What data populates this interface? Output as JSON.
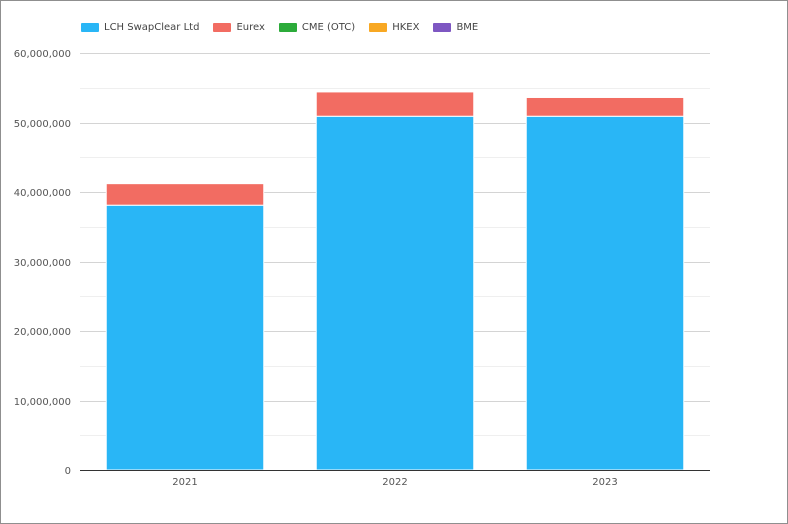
{
  "legend": {
    "items": [
      {
        "label": "LCH SwapClear Ltd",
        "color": "#29b6f6",
        "icon": "legend-swatch"
      },
      {
        "label": "Eurex",
        "color": "#f26c62",
        "icon": "legend-swatch"
      },
      {
        "label": "CME (OTC)",
        "color": "#2cab3a",
        "icon": "legend-swatch"
      },
      {
        "label": "HKEX",
        "color": "#f8a823",
        "icon": "legend-swatch"
      },
      {
        "label": "BME",
        "color": "#7e57c2",
        "icon": "legend-swatch"
      }
    ]
  },
  "chart_data": {
    "type": "bar",
    "stacked": true,
    "categories": [
      "2021",
      "2022",
      "2023"
    ],
    "series": [
      {
        "name": "LCH SwapClear Ltd",
        "color": "#29b6f6",
        "values": [
          38100000,
          50900000,
          50900000
        ]
      },
      {
        "name": "Eurex",
        "color": "#f26c62",
        "values": [
          3100000,
          3500000,
          2700000
        ]
      },
      {
        "name": "CME (OTC)",
        "color": "#2cab3a",
        "values": [
          0,
          0,
          0
        ]
      },
      {
        "name": "HKEX",
        "color": "#f8a823",
        "values": [
          0,
          0,
          0
        ]
      },
      {
        "name": "BME",
        "color": "#7e57c2",
        "values": [
          0,
          0,
          0
        ]
      }
    ],
    "ylim": [
      0,
      60000000
    ],
    "yticks": [
      "0",
      "10,000,000",
      "20,000,000",
      "30,000,000",
      "40,000,000",
      "50,000,000",
      "60,000,000"
    ],
    "ytick_values": [
      0,
      10000000,
      20000000,
      30000000,
      40000000,
      50000000,
      60000000
    ],
    "grid": true,
    "legend_position": "top-left",
    "title": "",
    "xlabel": "",
    "ylabel": ""
  }
}
